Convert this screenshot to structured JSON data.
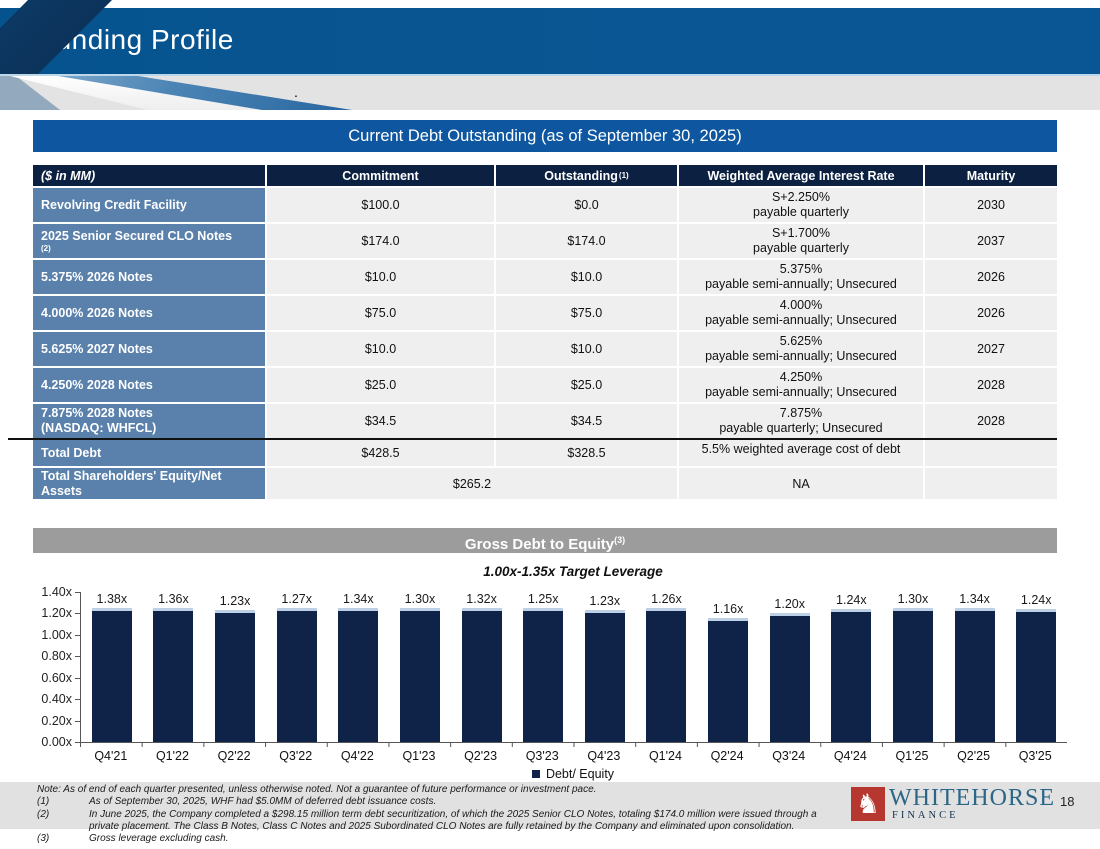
{
  "slide": {
    "title": "Funding Profile",
    "page_number": "18",
    "decorative_dot": "."
  },
  "debt_table": {
    "title": "Current Debt Outstanding (as of September 30, 2025)",
    "columns": [
      {
        "text": "($ in MM)",
        "sup": ""
      },
      {
        "text": "Commitment",
        "sup": ""
      },
      {
        "text": "Outstanding",
        "sup": "(1)"
      },
      {
        "text": "Weighted Average Interest Rate",
        "sup": ""
      },
      {
        "text": "Maturity",
        "sup": ""
      }
    ],
    "rows": [
      {
        "label_lines": [
          "Revolving Credit Facility"
        ],
        "sup": "",
        "commitment": "$100.0",
        "outstanding": "$0.0",
        "rate_lines": [
          "S+2.250%",
          "payable quarterly"
        ],
        "maturity": "2030"
      },
      {
        "label_lines": [
          "2025 Senior Secured CLO Notes"
        ],
        "sup": "(2)",
        "commitment": "$174.0",
        "outstanding": "$174.0",
        "rate_lines": [
          "S+1.700%",
          "payable quarterly"
        ],
        "maturity": "2037"
      },
      {
        "label_lines": [
          "5.375% 2026 Notes"
        ],
        "sup": "",
        "commitment": "$10.0",
        "outstanding": "$10.0",
        "rate_lines": [
          "5.375%",
          "payable semi-annually; Unsecured"
        ],
        "maturity": "2026"
      },
      {
        "label_lines": [
          "4.000% 2026 Notes"
        ],
        "sup": "",
        "commitment": "$75.0",
        "outstanding": "$75.0",
        "rate_lines": [
          "4.000%",
          "payable semi-annually; Unsecured"
        ],
        "maturity": "2026"
      },
      {
        "label_lines": [
          "5.625% 2027 Notes"
        ],
        "sup": "",
        "commitment": "$10.0",
        "outstanding": "$10.0",
        "rate_lines": [
          "5.625%",
          "payable semi-annually; Unsecured"
        ],
        "maturity": "2027"
      },
      {
        "label_lines": [
          "4.250% 2028 Notes"
        ],
        "sup": "",
        "commitment": "$25.0",
        "outstanding": "$25.0",
        "rate_lines": [
          "4.250%",
          "payable semi-annually;  Unsecured"
        ],
        "maturity": "2028"
      },
      {
        "label_lines": [
          "7.875% 2028 Notes",
          "(NASDAQ: WHFCL)"
        ],
        "sup": "",
        "commitment": "$34.5",
        "outstanding": "$34.5",
        "rate_lines": [
          "7.875%",
          "payable quarterly;  Unsecured"
        ],
        "maturity": "2028"
      }
    ],
    "total_row": {
      "label_lines": [
        "Total Debt"
      ],
      "commitment": "$428.5",
      "outstanding": "$328.5",
      "rate": "5.5% weighted average cost of debt",
      "maturity": ""
    },
    "equity_row": {
      "label_lines": [
        "Total Shareholders' Equity/Net",
        "Assets"
      ],
      "merged_value": "$265.2",
      "rate": "NA",
      "maturity": ""
    }
  },
  "chart_data": {
    "type": "bar",
    "title": "Gross Debt to Equity",
    "title_sup": "(3)",
    "subtitle": "1.00x-1.35x Target Leverage",
    "categories": [
      "Q4'21",
      "Q1'22",
      "Q2'22",
      "Q3'22",
      "Q4'22",
      "Q1'23",
      "Q2'23",
      "Q3'23",
      "Q4'23",
      "Q1'24",
      "Q2'24",
      "Q3'24",
      "Q4'24",
      "Q1'25",
      "Q2'25",
      "Q3'25"
    ],
    "values": [
      1.38,
      1.36,
      1.23,
      1.27,
      1.34,
      1.3,
      1.32,
      1.25,
      1.23,
      1.26,
      1.16,
      1.2,
      1.24,
      1.3,
      1.34,
      1.24
    ],
    "bar_labels": [
      "1.38x",
      "1.36x",
      "1.23x",
      "1.27x",
      "1.34x",
      "1.30x",
      "1.32x",
      "1.25x",
      "1.23x",
      "1.26x",
      "1.16x",
      "1.20x",
      "1.24x",
      "1.30x",
      "1.34x",
      "1.24x"
    ],
    "y_ticks": [
      "1.40x",
      "1.20x",
      "1.00x",
      "0.80x",
      "0.60x",
      "0.40x",
      "0.20x",
      "0.00x"
    ],
    "ylim": [
      0,
      1.4
    ],
    "xlabel": "",
    "ylabel": "",
    "grid": false,
    "legend": "Debt/ Equity",
    "legend_position": "bottom"
  },
  "notes": {
    "note": "Note: As of end of each quarter presented, unless otherwise noted. Not a guarantee of future performance or investment pace.",
    "items": [
      {
        "num": "(1)",
        "text": "As of September 30, 2025, WHF had $5.0MM of deferred debt issuance costs."
      },
      {
        "num": "(2)",
        "text": "In June 2025, the Company completed a $298.15 million term debt securitization, of which the 2025 Senior CLO Notes, totaling $174.0 million were issued through a private placement. The Class B Notes, Class C Notes and 2025 Subordinated CLO Notes are fully retained by the Company and eliminated upon consolidation."
      },
      {
        "num": "(3)",
        "text": "Gross leverage excluding cash."
      }
    ]
  },
  "logo": {
    "brand": "WHITEHORSE",
    "sub": "FINANCE",
    "icon": "white-horse"
  },
  "colors": {
    "header_blue": "#0a5694",
    "banner_blue": "#0e57a0",
    "table_header_navy": "#0c2142",
    "row_label_blue": "#5a81ab",
    "cell_gray": "#efefef",
    "chart_banner_gray": "#9c9c9c",
    "bar_navy": "#0f2348",
    "bar_top_edge": "#bdd0e5",
    "logo_red": "#b5372f",
    "notes_band_gray": "#e1e1e1"
  }
}
